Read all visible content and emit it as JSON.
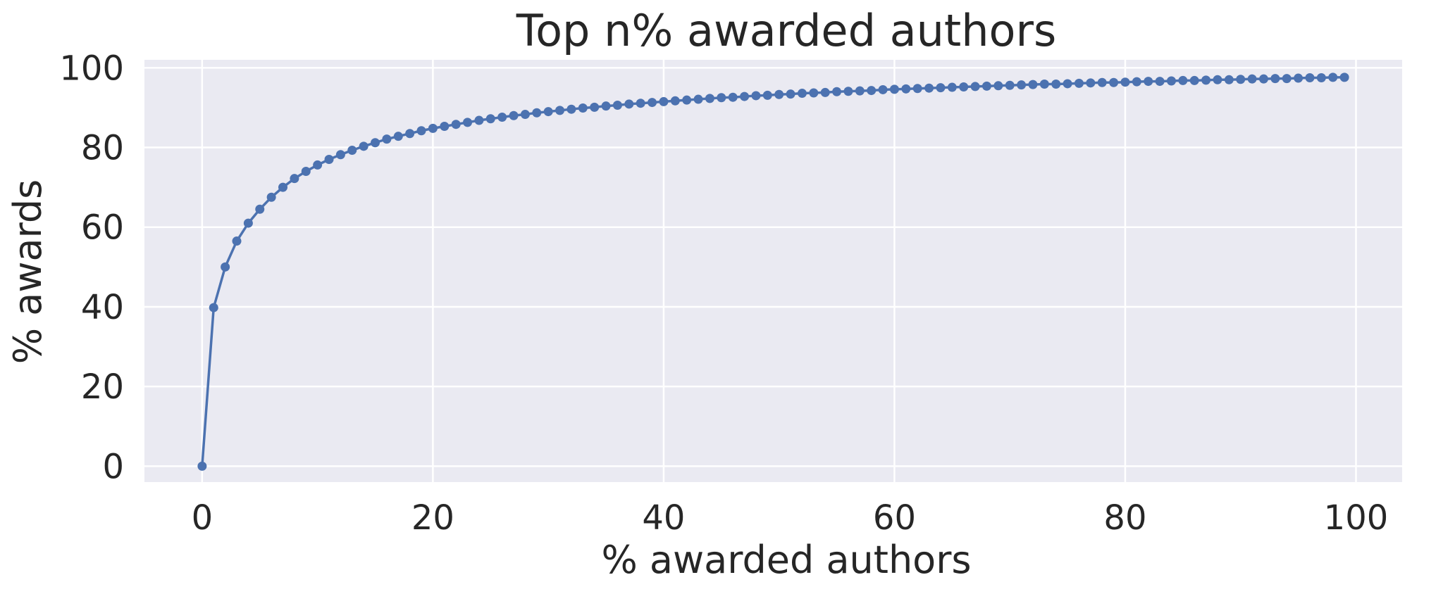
{
  "chart_data": {
    "type": "line",
    "title": "Top n% awarded authors",
    "xlabel": "% awarded authors",
    "ylabel": "% awards",
    "xlim": [
      -5,
      104
    ],
    "ylim": [
      -4,
      102
    ],
    "xticks": [
      0,
      20,
      40,
      60,
      80,
      100
    ],
    "yticks": [
      0,
      20,
      40,
      60,
      80,
      100
    ],
    "grid": true,
    "colors": {
      "plot_bg": "#EAEAF2",
      "grid": "#FFFFFF",
      "series": "#4C72B0",
      "text": "#262626"
    },
    "series": [
      {
        "marker": "circle",
        "x": [
          0,
          1,
          2,
          3,
          4,
          5,
          6,
          7,
          8,
          9,
          10,
          11,
          12,
          13,
          14,
          15,
          16,
          17,
          18,
          19,
          20,
          21,
          22,
          23,
          24,
          25,
          26,
          27,
          28,
          29,
          30,
          31,
          32,
          33,
          34,
          35,
          36,
          37,
          38,
          39,
          40,
          41,
          42,
          43,
          44,
          45,
          46,
          47,
          48,
          49,
          50,
          51,
          52,
          53,
          54,
          55,
          56,
          57,
          58,
          59,
          60,
          61,
          62,
          63,
          64,
          65,
          66,
          67,
          68,
          69,
          70,
          71,
          72,
          73,
          74,
          75,
          76,
          77,
          78,
          79,
          80,
          81,
          82,
          83,
          84,
          85,
          86,
          87,
          88,
          89,
          90,
          91,
          92,
          93,
          94,
          95,
          96,
          97,
          98,
          99
        ],
        "y": [
          0,
          39.8,
          50,
          56.5,
          61,
          64.5,
          67.5,
          70,
          72.2,
          74,
          75.6,
          77,
          78.2,
          79.3,
          80.3,
          81.2,
          82.1,
          82.8,
          83.5,
          84.2,
          84.8,
          85.3,
          85.8,
          86.3,
          86.8,
          87.2,
          87.6,
          88,
          88.3,
          88.7,
          89,
          89.3,
          89.6,
          89.9,
          90.1,
          90.4,
          90.6,
          90.9,
          91.1,
          91.3,
          91.5,
          91.7,
          91.9,
          92.1,
          92.3,
          92.5,
          92.6,
          92.8,
          93,
          93.1,
          93.3,
          93.4,
          93.6,
          93.7,
          93.8,
          94,
          94.1,
          94.2,
          94.3,
          94.5,
          94.6,
          94.7,
          94.8,
          94.9,
          95,
          95.1,
          95.2,
          95.3,
          95.4,
          95.5,
          95.6,
          95.7,
          95.8,
          95.9,
          95.9,
          96,
          96.1,
          96.2,
          96.3,
          96.3,
          96.4,
          96.5,
          96.6,
          96.6,
          96.7,
          96.8,
          96.8,
          96.9,
          97,
          97,
          97.1,
          97.2,
          97.2,
          97.3,
          97.3,
          97.4,
          97.5,
          97.5,
          97.6,
          97.6
        ]
      }
    ]
  }
}
